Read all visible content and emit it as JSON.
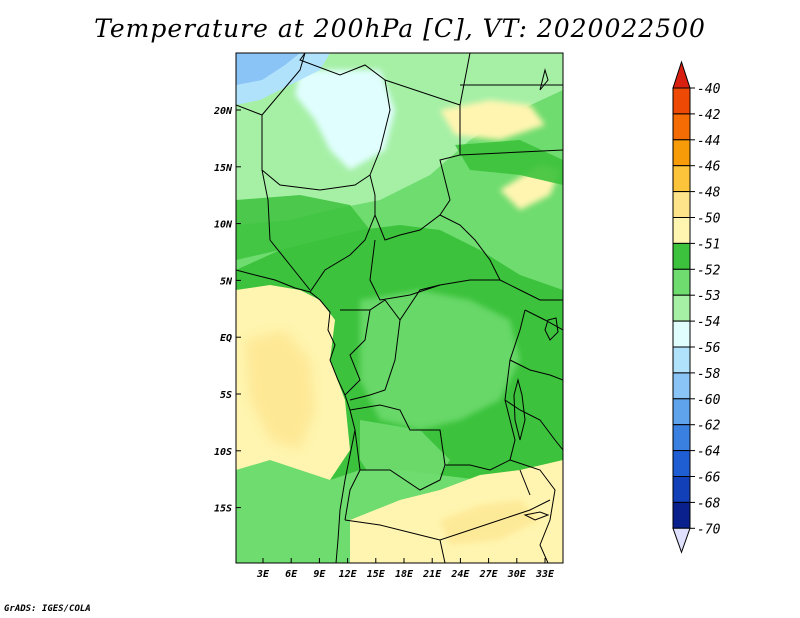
{
  "title": "Temperature at 200hPa [C], VT: 2020022500",
  "credit": "GrADS: IGES/COLA",
  "lat_labels": [
    "20N",
    "15N",
    "10N",
    "5N",
    "EQ",
    "5S",
    "10S",
    "15S"
  ],
  "lon_labels": [
    "3E",
    "6E",
    "9E",
    "12E",
    "15E",
    "18E",
    "21E",
    "24E",
    "27E",
    "30E",
    "33E"
  ],
  "colorbar": {
    "labels": [
      "-40",
      "-42",
      "-44",
      "-46",
      "-48",
      "-50",
      "-51",
      "-52",
      "-53",
      "-54",
      "-56",
      "-58",
      "-60",
      "-62",
      "-64",
      "-66",
      "-68",
      "-70"
    ],
    "colors": [
      "#d92010",
      "#ee4a05",
      "#f56c04",
      "#f79c08",
      "#fbc43b",
      "#fde38a",
      "#fff5b0",
      "#3cc23c",
      "#6fdc6f",
      "#a6f0a6",
      "#e0fefe",
      "#b0e2fb",
      "#8ac3f5",
      "#5fa3ed",
      "#3980e0",
      "#1f5ed2",
      "#1240b8",
      "#0a208c",
      "#e0e0ff"
    ]
  },
  "chart_data": {
    "type": "heatmap",
    "variable": "Temperature at 200hPa [C]",
    "valid_time": "2020022500",
    "x_axis": {
      "labels": [
        "3E",
        "6E",
        "9E",
        "12E",
        "15E",
        "18E",
        "21E",
        "24E",
        "27E",
        "30E",
        "33E"
      ],
      "range_deg": [
        0,
        35
      ]
    },
    "y_axis": {
      "labels": [
        "20N",
        "15N",
        "10N",
        "5N",
        "EQ",
        "5S",
        "10S",
        "15S"
      ],
      "range_deg": [
        -19.5,
        24.5
      ]
    },
    "levels": [
      -40,
      -42,
      -44,
      -46,
      -48,
      -50,
      -51,
      -52,
      -53,
      -54,
      -56,
      -58,
      -60,
      -62,
      -64,
      -66,
      -68,
      -70
    ],
    "regions": [
      {
        "area": "far NW corner",
        "value_range": "-54 to -56"
      },
      {
        "area": "northern Sahara/Niger",
        "value_range": "-53 to -54"
      },
      {
        "area": "Sahel/central Africa",
        "value_range": "-52 to -53"
      },
      {
        "area": "Gulf of Guinea/Atlantic",
        "value_range": "-50 to -51"
      },
      {
        "area": "southern Africa/Zambia",
        "value_range": "-50 to -51"
      },
      {
        "area": "Sudan band near 20N",
        "value_range": "-50 to -51"
      }
    ]
  }
}
